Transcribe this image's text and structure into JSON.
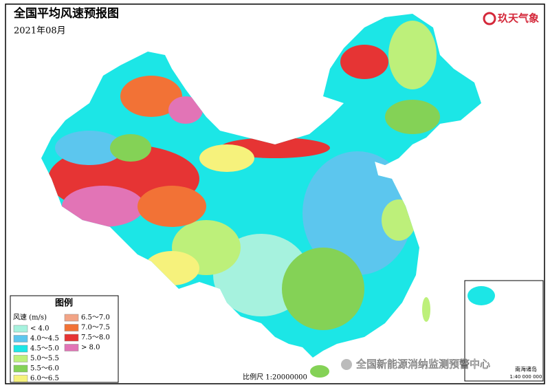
{
  "header": {
    "title": "全国平均风速预报图",
    "subtitle": "2021年08月",
    "logo": "玖天气象"
  },
  "legend": {
    "title": "图例",
    "unit": "风速 (m/s)",
    "items": [
      {
        "label": "< 4.0",
        "color": "#a6f2de"
      },
      {
        "label": "4.0～4.5",
        "color": "#5cc6ee"
      },
      {
        "label": "4.5～5.0",
        "color": "#1ce6e6"
      },
      {
        "label": "5.0～5.5",
        "color": "#bdf07a"
      },
      {
        "label": "5.5～6.0",
        "color": "#84d256"
      },
      {
        "label": "6.0～6.5",
        "color": "#f6f27c"
      },
      {
        "label": "6.5～7.0",
        "color": "#f2a486"
      },
      {
        "label": "7.0～7.5",
        "color": "#f27236"
      },
      {
        "label": "7.5～8.0",
        "color": "#e63434"
      },
      {
        "label": "> 8.0",
        "color": "#e274b6"
      }
    ]
  },
  "scale": "比例尺 1:20000000",
  "inset": {
    "title": "南海诸岛",
    "scale": "1:40 000 000"
  },
  "watermark": "全国新能源消纳监测预警中心"
}
